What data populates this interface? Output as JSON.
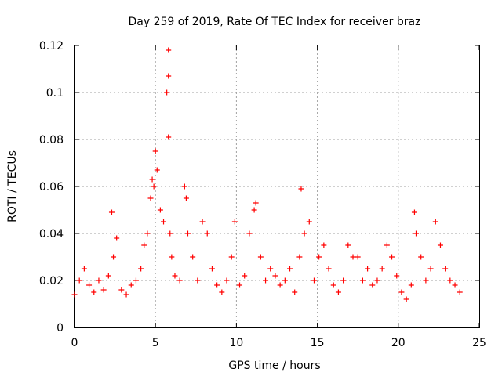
{
  "chart_data": {
    "type": "scatter",
    "title": "Day 259 of 2019, Rate Of TEC Index for receiver braz",
    "xlabel": "GPS time / hours",
    "ylabel": "ROTI / TECUs",
    "xlim": [
      0,
      25
    ],
    "ylim": [
      0,
      0.12
    ],
    "grid": true,
    "x_ticks": [
      "0",
      "5",
      "10",
      "15",
      "20",
      "25"
    ],
    "y_ticks": [
      "0",
      "0.02",
      "0.04",
      "0.06",
      "0.08",
      "0.1",
      "0.12"
    ],
    "marker": "plus",
    "marker_color": "#ff0000",
    "series": [
      {
        "x": [
          0.0,
          0.3,
          0.6,
          0.9,
          1.2,
          1.5,
          1.8,
          2.1,
          2.3,
          2.4,
          2.6,
          2.9,
          3.2,
          3.5,
          3.8,
          4.1,
          4.3,
          4.5,
          4.7,
          4.8,
          4.9,
          5.0,
          5.1,
          5.3,
          5.5,
          5.7,
          5.8,
          5.8,
          5.8,
          5.9,
          6.0,
          6.2,
          6.5,
          6.8,
          6.9,
          7.0,
          7.3,
          7.6,
          7.9,
          8.2,
          8.5,
          8.8,
          9.1,
          9.4,
          9.7,
          9.9,
          10.2,
          10.5,
          10.8,
          11.1,
          11.2,
          11.5,
          11.8,
          12.1,
          12.4,
          12.7,
          13.0,
          13.3,
          13.6,
          13.9,
          14.0,
          14.2,
          14.5,
          14.8,
          15.1,
          15.4,
          15.7,
          16.0,
          16.3,
          16.6,
          16.9,
          17.2,
          17.5,
          17.8,
          18.1,
          18.4,
          18.7,
          19.0,
          19.3,
          19.6,
          19.9,
          20.2,
          20.5,
          20.8,
          21.0,
          21.1,
          21.4,
          21.7,
          22.0,
          22.3,
          22.6,
          22.9,
          23.2,
          23.5,
          23.8
        ],
        "y": [
          0.014,
          0.02,
          0.025,
          0.018,
          0.015,
          0.02,
          0.016,
          0.022,
          0.049,
          0.03,
          0.038,
          0.016,
          0.014,
          0.018,
          0.02,
          0.025,
          0.035,
          0.04,
          0.055,
          0.063,
          0.06,
          0.075,
          0.067,
          0.05,
          0.045,
          0.1,
          0.118,
          0.107,
          0.081,
          0.04,
          0.03,
          0.022,
          0.02,
          0.06,
          0.055,
          0.04,
          0.03,
          0.02,
          0.045,
          0.04,
          0.025,
          0.018,
          0.015,
          0.02,
          0.03,
          0.045,
          0.018,
          0.022,
          0.04,
          0.05,
          0.053,
          0.03,
          0.02,
          0.025,
          0.022,
          0.018,
          0.02,
          0.025,
          0.015,
          0.03,
          0.059,
          0.04,
          0.045,
          0.02,
          0.03,
          0.035,
          0.025,
          0.018,
          0.015,
          0.02,
          0.035,
          0.03,
          0.03,
          0.02,
          0.025,
          0.018,
          0.02,
          0.025,
          0.035,
          0.03,
          0.022,
          0.015,
          0.012,
          0.018,
          0.049,
          0.04,
          0.03,
          0.02,
          0.025,
          0.045,
          0.035,
          0.025,
          0.02,
          0.018,
          0.015
        ]
      }
    ]
  }
}
